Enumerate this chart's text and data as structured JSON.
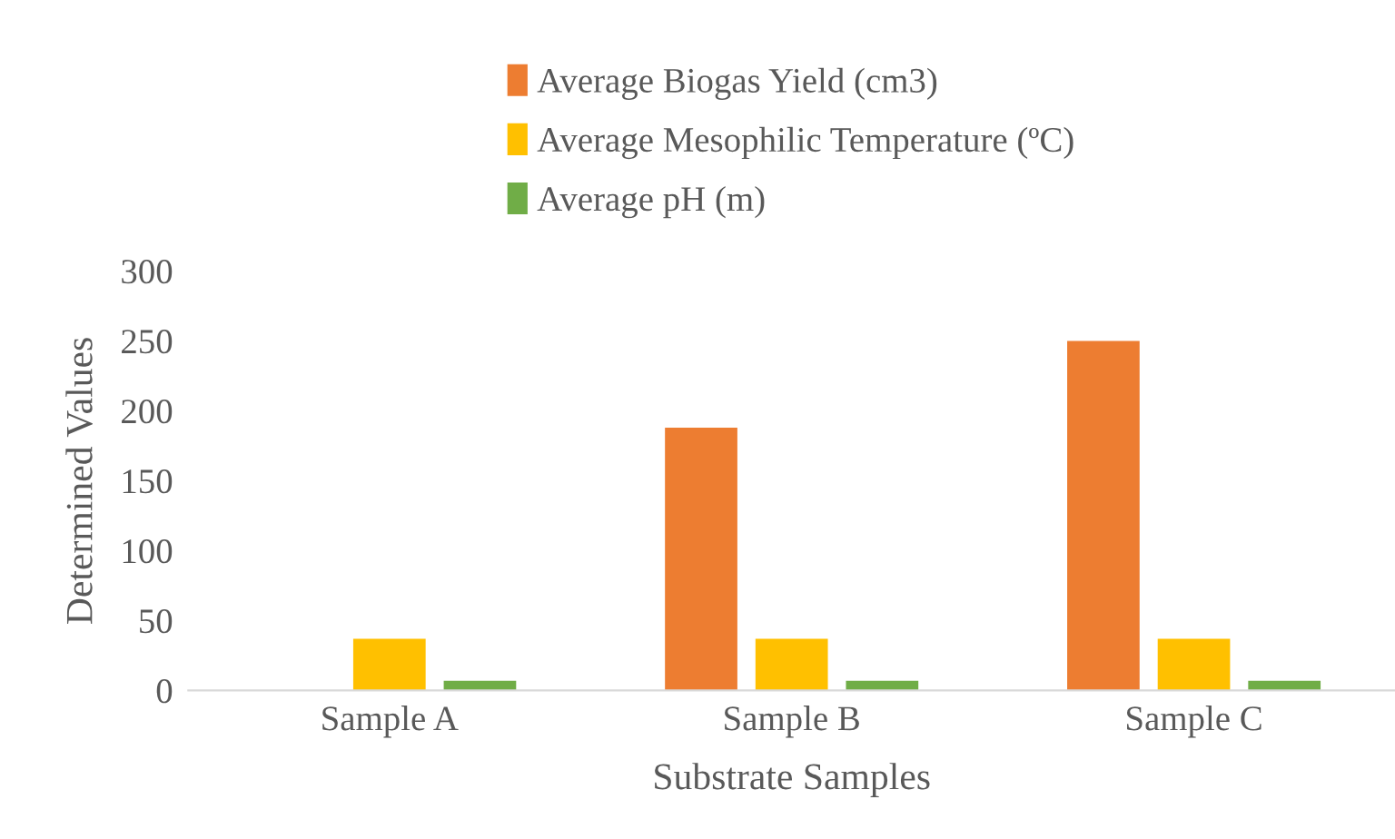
{
  "chart_data": {
    "type": "bar",
    "xlabel": "Substrate Samples",
    "ylabel": "Determined Values",
    "categories": [
      "Sample A",
      "Sample B",
      "Sample C"
    ],
    "series": [
      {
        "name": "Average Biogas Yield (cm3)",
        "color": "#ed7d31",
        "values": [
          0,
          188,
          250
        ]
      },
      {
        "name": "Average Mesophilic Temperature (ºC)",
        "color": "#ffc000",
        "values": [
          37,
          37,
          37
        ]
      },
      {
        "name": "Average pH (m)",
        "color": "#70ad47",
        "values": [
          7,
          7,
          7
        ]
      }
    ],
    "ylim": [
      0,
      300
    ],
    "yticks": [
      0,
      50,
      100,
      150,
      200,
      250,
      300
    ],
    "grid": false,
    "legend": "top"
  }
}
